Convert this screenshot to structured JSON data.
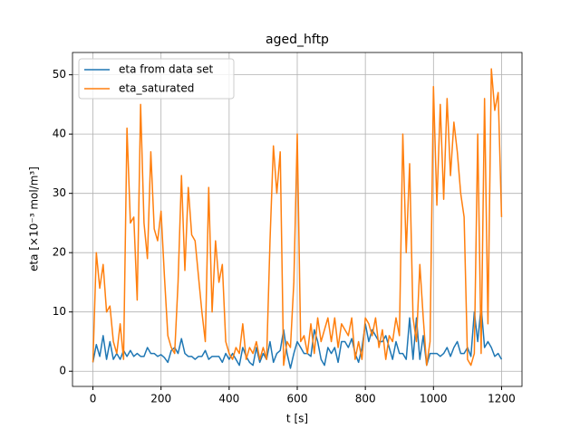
{
  "chart_data": {
    "type": "line",
    "title": "aged_hftp",
    "x_label": "t [s]",
    "y_label": "eta   [×10⁻³ mol/m³]",
    "x": [
      0,
      10,
      20,
      30,
      40,
      50,
      60,
      70,
      80,
      90,
      100,
      110,
      120,
      130,
      140,
      150,
      160,
      170,
      180,
      190,
      200,
      210,
      220,
      230,
      240,
      250,
      260,
      270,
      280,
      290,
      300,
      310,
      320,
      330,
      340,
      350,
      360,
      370,
      380,
      390,
      400,
      410,
      420,
      430,
      440,
      450,
      460,
      470,
      480,
      490,
      500,
      510,
      520,
      530,
      540,
      550,
      560,
      570,
      580,
      590,
      600,
      610,
      620,
      630,
      640,
      650,
      660,
      670,
      680,
      690,
      700,
      710,
      720,
      730,
      740,
      750,
      760,
      770,
      780,
      790,
      800,
      810,
      820,
      830,
      840,
      850,
      860,
      870,
      880,
      890,
      900,
      910,
      920,
      930,
      940,
      950,
      960,
      970,
      980,
      990,
      1000,
      1010,
      1020,
      1030,
      1040,
      1050,
      1060,
      1070,
      1080,
      1090,
      1100,
      1110,
      1120,
      1130,
      1140,
      1150,
      1160,
      1170,
      1180,
      1190,
      1200
    ],
    "series": [
      {
        "name": "eta from data set",
        "color": "#1f77b4",
        "values": [
          1.5,
          4.5,
          2.5,
          6,
          2,
          5,
          2,
          3,
          2,
          3.5,
          2.5,
          3.5,
          2.5,
          3,
          2.5,
          2.5,
          4,
          3,
          3,
          2.5,
          2.8,
          2.3,
          1.5,
          3.5,
          4,
          3,
          5.5,
          3,
          2.5,
          2.5,
          2,
          2.5,
          2.5,
          3.5,
          2,
          2.5,
          2.5,
          2.5,
          1.5,
          3,
          2,
          3,
          2,
          1,
          4,
          2.5,
          1.5,
          1,
          4,
          1.5,
          3,
          2,
          5,
          1.5,
          3,
          3.5,
          7,
          3,
          0.5,
          3,
          5,
          4,
          3,
          3,
          2.5,
          7,
          5,
          2,
          1,
          4,
          3,
          4,
          1.5,
          5,
          5,
          4,
          5.5,
          3,
          1.5,
          4,
          8,
          5,
          7,
          6,
          5,
          5,
          6,
          4,
          2,
          5,
          3,
          3,
          2,
          9,
          2,
          9,
          2,
          6,
          1,
          3,
          3,
          3,
          2.5,
          3,
          4,
          2.5,
          4,
          5,
          3,
          3,
          4,
          2.5,
          10,
          5,
          11,
          4,
          5,
          4,
          2.5,
          3,
          2
        ]
      },
      {
        "name": "eta_saturated",
        "color": "#ff7f0e",
        "values": [
          1.5,
          20,
          14,
          18,
          10,
          11,
          5,
          3,
          8,
          2,
          41,
          25,
          26,
          12,
          45,
          25,
          19,
          37,
          24,
          22,
          27,
          16,
          6,
          4,
          3,
          15,
          33,
          17,
          31,
          23,
          22,
          16,
          10,
          5,
          31,
          10,
          22,
          15,
          18,
          5,
          3,
          2,
          4,
          3,
          8,
          2,
          4,
          3,
          5,
          2,
          4,
          2,
          22,
          38,
          30,
          37,
          1,
          5,
          4,
          15,
          40,
          5,
          6,
          3,
          8,
          3,
          9,
          5,
          7,
          9,
          5,
          9,
          4,
          8,
          7,
          6,
          9,
          2,
          5,
          2,
          9,
          8,
          6,
          9,
          4,
          7,
          2,
          6,
          5,
          9,
          6,
          40,
          20,
          35,
          9,
          5,
          18,
          9,
          1,
          5,
          48,
          28,
          45,
          29,
          46,
          33,
          42,
          37,
          30,
          26,
          2,
          1,
          3,
          40,
          3,
          46,
          8,
          51,
          44,
          47,
          26
        ]
      }
    ],
    "xlim": [
      -60,
      1260
    ],
    "xticks": [
      0,
      200,
      400,
      600,
      800,
      1000,
      1200
    ],
    "ylim": [
      -2.56,
      53.76
    ],
    "yticks": [
      0,
      10,
      20,
      30,
      40,
      50
    ],
    "grid": true,
    "legend": "upper left"
  }
}
